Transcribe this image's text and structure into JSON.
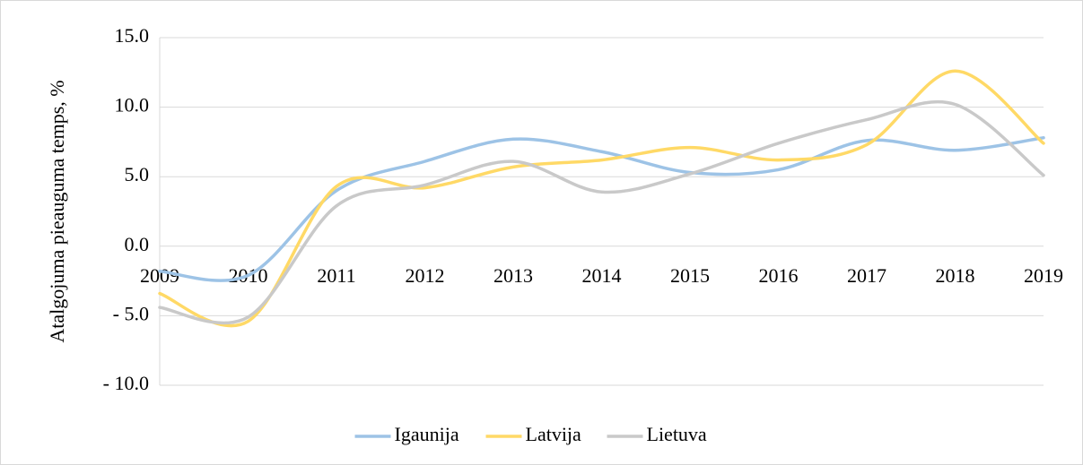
{
  "chart_data": {
    "type": "line",
    "y_label": "Atalgojuma pieauguma temps, %",
    "categories": [
      "2009",
      "2010",
      "2011",
      "2012",
      "2013",
      "2014",
      "2015",
      "2016",
      "2017",
      "2018",
      "2019"
    ],
    "series": [
      {
        "name": "Igaunija",
        "color": "#9dc3e6",
        "values": [
          -1.8,
          -2.1,
          4.0,
          6.1,
          7.7,
          6.8,
          5.3,
          5.5,
          7.6,
          6.9,
          7.8
        ]
      },
      {
        "name": "Latvija",
        "color": "#ffd966",
        "values": [
          -3.4,
          -5.4,
          4.3,
          4.2,
          5.7,
          6.2,
          7.1,
          6.2,
          7.3,
          12.6,
          7.4
        ]
      },
      {
        "name": "Lietuva",
        "color": "#c9c9c9",
        "values": [
          -4.4,
          -5.1,
          2.9,
          4.4,
          6.1,
          3.9,
          5.2,
          7.4,
          9.1,
          10.2,
          5.1
        ]
      }
    ],
    "ylim": [
      -10,
      15
    ],
    "yticks": [
      {
        "value": -10,
        "label": "- 10.0"
      },
      {
        "value": -5,
        "label": "- 5.0"
      },
      {
        "value": 0,
        "label": "0.0"
      },
      {
        "value": 5,
        "label": "5.0"
      },
      {
        "value": 10,
        "label": "10.0"
      },
      {
        "value": 15,
        "label": "15.0"
      }
    ],
    "grid": true,
    "smooth": true,
    "legend": "bottom"
  }
}
